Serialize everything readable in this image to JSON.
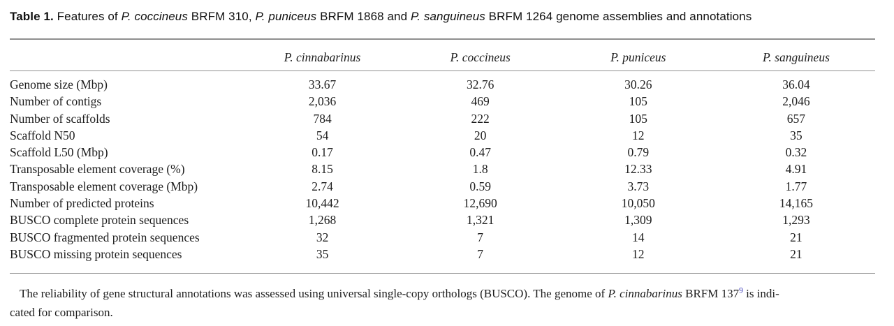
{
  "table": {
    "caption_segments": [
      {
        "text": "Table 1.",
        "bold": true
      },
      {
        "text": " Features of "
      },
      {
        "text": "P. coccineus",
        "italic": true
      },
      {
        "text": " BRFM 310, "
      },
      {
        "text": "P. puniceus",
        "italic": true
      },
      {
        "text": " BRFM 1868 and "
      },
      {
        "text": "P. sanguineus",
        "italic": true
      },
      {
        "text": " BRFM 1264 genome assemblies and annotations"
      }
    ],
    "columns": [
      "P. cinnabarinus",
      "P. coccineus",
      "P. puniceus",
      "P. sanguineus"
    ],
    "rows": [
      {
        "label": "Genome size (Mbp)",
        "values": [
          "33.67",
          "32.76",
          "30.26",
          "36.04"
        ]
      },
      {
        "label": "Number of contigs",
        "values": [
          "2,036",
          "469",
          "105",
          "2,046"
        ]
      },
      {
        "label": "Number of scaffolds",
        "values": [
          "784",
          "222",
          "105",
          "657"
        ]
      },
      {
        "label": "Scaffold N50",
        "values": [
          "54",
          "20",
          "12",
          "35"
        ]
      },
      {
        "label": "Scaffold L50 (Mbp)",
        "values": [
          "0.17",
          "0.47",
          "0.79",
          "0.32"
        ]
      },
      {
        "label": "Transposable element coverage (%)",
        "values": [
          "8.15",
          "1.8",
          "12.33",
          "4.91"
        ]
      },
      {
        "label": "Transposable element coverage (Mbp)",
        "values": [
          "2.74",
          "0.59",
          "3.73",
          "1.77"
        ]
      },
      {
        "label": "Number of predicted proteins",
        "values": [
          "10,442",
          "12,690",
          "10,050",
          "14,165"
        ]
      },
      {
        "label": "BUSCO complete protein sequences",
        "values": [
          "1,268",
          "1,321",
          "1,309",
          "1,293"
        ]
      },
      {
        "label": "BUSCO fragmented protein sequences",
        "values": [
          "32",
          "7",
          "14",
          "21"
        ]
      },
      {
        "label": "BUSCO missing protein sequences",
        "values": [
          "35",
          "7",
          "12",
          "21"
        ]
      }
    ],
    "footnote_segments": [
      {
        "text": "The reliability of gene structural annotations was assessed using universal single-copy orthologs (BUSCO). The genome of "
      },
      {
        "text": "P. cinnabarinus",
        "italic": true
      },
      {
        "text": " BRFM 137"
      },
      {
        "text": "9",
        "sup": true
      },
      {
        "text": " is indi-"
      },
      {
        "break": true
      },
      {
        "text": "cated for comparison."
      }
    ],
    "colors": {
      "text": "#1d1d1d",
      "rule": "#8f8f8f",
      "citation_link": "#4040bb"
    }
  }
}
